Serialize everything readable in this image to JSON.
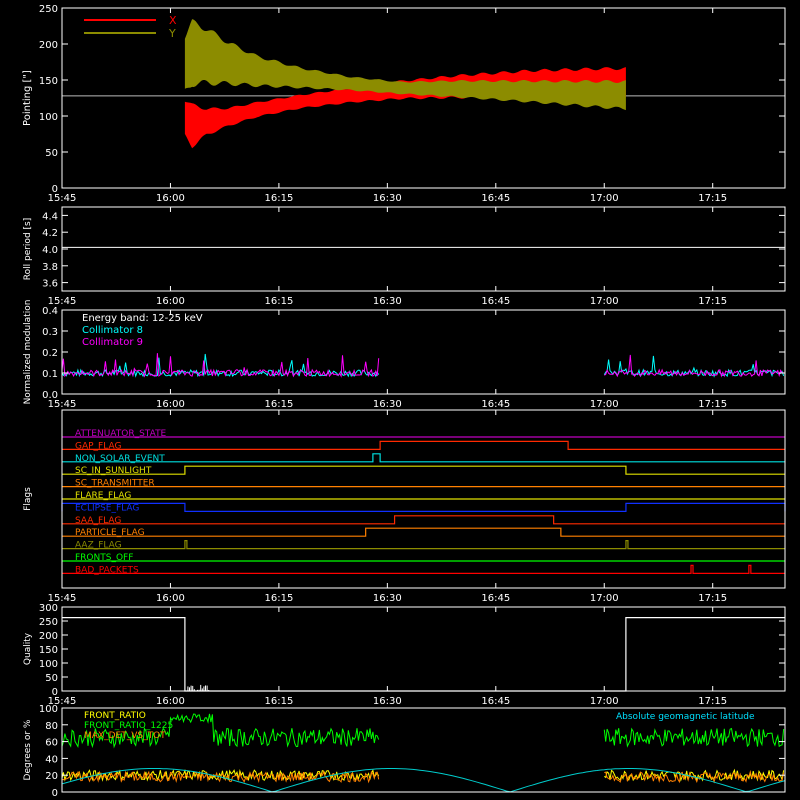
{
  "chart_data": [
    {
      "type": "line",
      "ylabel": "Pointing [\"]",
      "xticks": [
        "15:45",
        "16:00",
        "16:15",
        "16:30",
        "16:45",
        "17:00",
        "17:15"
      ],
      "yticks": [
        "0",
        "50",
        "100",
        "150",
        "200",
        "250"
      ],
      "ylim": [
        0,
        250
      ],
      "xlim": [
        "15:45",
        "17:25"
      ],
      "reference_line": 128,
      "series": [
        {
          "name": "X",
          "color": "#ff0000",
          "envelope_time": [
            "16:02",
            "16:03",
            "16:05",
            "16:08",
            "16:12",
            "16:18",
            "16:25",
            "16:32",
            "16:40",
            "16:50",
            "17:00",
            "17:03"
          ],
          "envelope_low": [
            70,
            55,
            72,
            85,
            98,
            110,
            118,
            123,
            124,
            125,
            125,
            126
          ],
          "envelope_high": [
            125,
            118,
            112,
            112,
            120,
            130,
            140,
            150,
            158,
            165,
            168,
            168
          ]
        },
        {
          "name": "Y",
          "color": "#8c8c00",
          "envelope_time": [
            "16:02",
            "16:03",
            "16:05",
            "16:08",
            "16:12",
            "16:18",
            "16:25",
            "16:32",
            "16:40",
            "16:50",
            "17:00",
            "17:03"
          ],
          "envelope_low": [
            130,
            140,
            142,
            142,
            140,
            138,
            135,
            130,
            125,
            118,
            110,
            108
          ],
          "envelope_high": [
            215,
            235,
            225,
            205,
            185,
            168,
            155,
            148,
            150,
            150,
            150,
            150
          ]
        }
      ]
    },
    {
      "type": "line",
      "ylabel": "Roll period [s]",
      "xticks": [
        "15:45",
        "16:00",
        "16:15",
        "16:30",
        "16:45",
        "17:00",
        "17:15"
      ],
      "yticks": [
        "3.6",
        "3.8",
        "4.0",
        "4.2",
        "4.4"
      ],
      "ylim": [
        3.5,
        4.5
      ],
      "series": [
        {
          "name": "",
          "color": "#ffffff",
          "x": [
            "15:45",
            "17:25"
          ],
          "y": [
            4.02,
            4.02
          ]
        }
      ]
    },
    {
      "type": "line",
      "ylabel": "Normalized modulation",
      "xticks": [
        "15:45",
        "16:00",
        "16:15",
        "16:30",
        "16:45",
        "17:00",
        "17:15"
      ],
      "yticks": [
        "0.0",
        "0.1",
        "0.2",
        "0.3",
        "0.4"
      ],
      "ylim": [
        0,
        0.4
      ],
      "annotation": "Energy band: 12-25 keV",
      "series": [
        {
          "name": "Collimator 8",
          "color": "#00ffff",
          "segments": [
            [
              "15:45",
              "16:29"
            ],
            [
              "17:00",
              "17:25"
            ]
          ],
          "base": 0.1
        },
        {
          "name": "Collimator 9",
          "color": "#ff00ff",
          "segments": [
            [
              "15:45",
              "16:29"
            ],
            [
              "17:00",
              "17:25"
            ]
          ],
          "base": 0.1
        }
      ]
    },
    {
      "type": "line",
      "ylabel": "Flags",
      "xticks": [
        "15:45",
        "16:00",
        "16:15",
        "16:30",
        "16:45",
        "17:00",
        "17:15"
      ],
      "flags": [
        {
          "name": "ATTENUATOR_STATE",
          "color": "#c000c0",
          "on": []
        },
        {
          "name": "GAP_FLAG",
          "color": "#ff2a00",
          "on": [
            [
              "16:29",
              "16:55"
            ]
          ]
        },
        {
          "name": "NON_SOLAR_EVENT",
          "color": "#00e0e0",
          "on": [
            [
              "16:28",
              "16:29"
            ]
          ]
        },
        {
          "name": "SC_IN_SUNLIGHT",
          "color": "#e0e000",
          "on": [
            [
              "16:02",
              "17:03"
            ]
          ]
        },
        {
          "name": "SC_TRANSMITTER",
          "color": "#ff8000",
          "on": []
        },
        {
          "name": "FLARE_FLAG",
          "color": "#e0e000",
          "on": []
        },
        {
          "name": "ECLIPSE_FLAG",
          "color": "#1030ff",
          "on": [
            [
              "15:45",
              "16:02"
            ],
            [
              "17:03",
              "17:25"
            ]
          ]
        },
        {
          "name": "SAA_FLAG",
          "color": "#ff2a00",
          "on": [
            [
              "16:31",
              "16:53"
            ]
          ]
        },
        {
          "name": "PARTICLE_FLAG",
          "color": "#ff8000",
          "on": [
            [
              "16:27",
              "16:54"
            ]
          ]
        },
        {
          "name": "AAZ_FLAG",
          "color": "#8c8c00",
          "on": [
            [
              "16:02",
              "16:02"
            ],
            [
              "17:03",
              "17:03"
            ]
          ]
        },
        {
          "name": "FRONTS_OFF",
          "color": "#00ff00",
          "on": []
        },
        {
          "name": "BAD_PACKETS",
          "color": "#ff0000",
          "on": [
            [
              "17:12",
              "17:12"
            ],
            [
              "17:20",
              "17:20"
            ]
          ]
        }
      ]
    },
    {
      "type": "line",
      "ylabel": "Quality",
      "xticks": [
        "15:45",
        "16:00",
        "16:15",
        "16:30",
        "16:45",
        "17:00",
        "17:15"
      ],
      "yticks": [
        "0",
        "50",
        "100",
        "150",
        "200",
        "250",
        "300"
      ],
      "ylim": [
        0,
        300
      ],
      "series": [
        {
          "name": "",
          "color": "#ffffff",
          "x": [
            "15:45",
            "16:02",
            "16:02",
            "17:03",
            "17:03",
            "17:25"
          ],
          "y": [
            262,
            262,
            0,
            0,
            262,
            262
          ]
        }
      ]
    },
    {
      "type": "line",
      "ylabel": "Degrees or %",
      "yticks": [
        "0",
        "20",
        "40",
        "60",
        "80",
        "100"
      ],
      "ylim": [
        0,
        100
      ],
      "series": [
        {
          "name": "FRONT_RATIO",
          "color": "#ffff00",
          "segments": [
            [
              "15:45",
              "16:29"
            ],
            [
              "17:00",
              "17:25"
            ]
          ],
          "base": 20
        },
        {
          "name": "FRONT_RATIO_1225",
          "color": "#00ff00",
          "segments": [
            [
              "15:45",
              "16:29"
            ],
            [
              "17:00",
              "17:25"
            ]
          ],
          "base": 65
        },
        {
          "name": "MAX_DET_VS_TOT",
          "color": "#ff8000",
          "segments": [
            [
              "15:45",
              "16:29"
            ],
            [
              "17:00",
              "17:25"
            ]
          ],
          "base": 18
        },
        {
          "name": "Absolute geomagnetic latitude",
          "color": "#00cccc",
          "wave": true
        }
      ]
    }
  ]
}
